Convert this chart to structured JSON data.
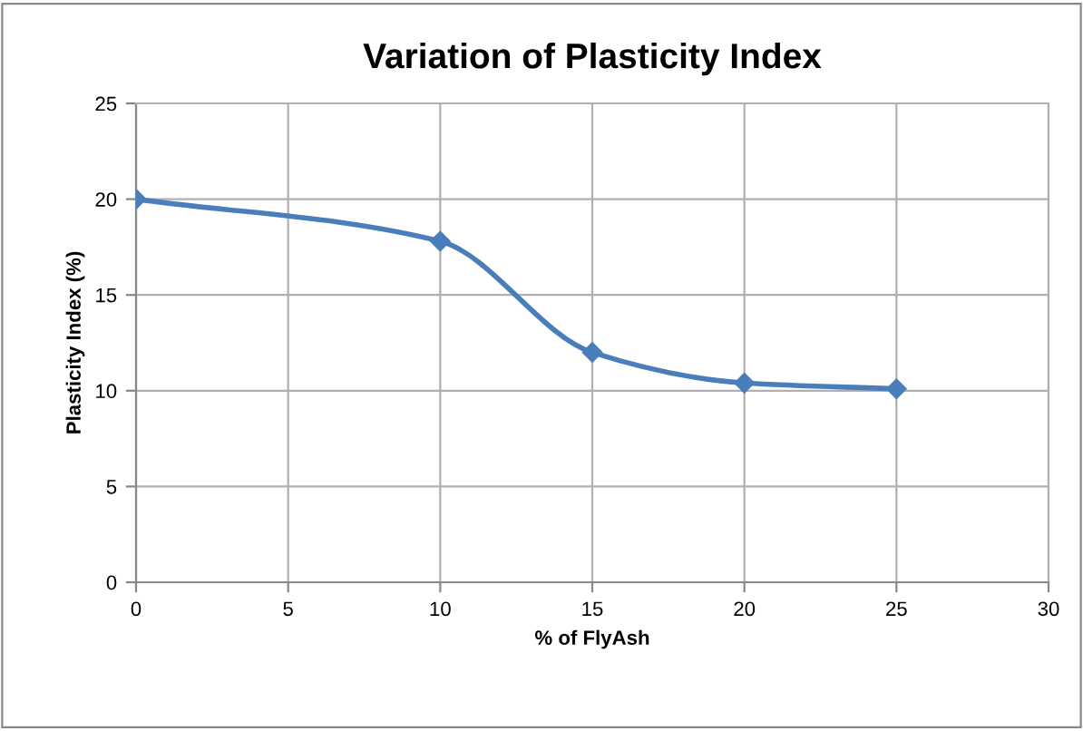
{
  "chart_data": {
    "type": "line",
    "title": "Variation of Plasticity Index",
    "xlabel": "% of FlyAsh",
    "ylabel": "Plasticity Index (%)",
    "x": [
      0,
      10,
      15,
      20,
      25
    ],
    "series": [
      {
        "color": "#4a7ebb",
        "values": [
          20,
          17.8,
          12,
          10.4,
          10.1
        ]
      }
    ],
    "xlim": [
      0,
      30
    ],
    "xticks": [
      0,
      5,
      10,
      15,
      20,
      25,
      30
    ],
    "ylim": [
      0,
      25
    ],
    "yticks": [
      0,
      5,
      10,
      15,
      20,
      25
    ],
    "grid": true,
    "marker": "diamond",
    "line_style": "solid"
  }
}
